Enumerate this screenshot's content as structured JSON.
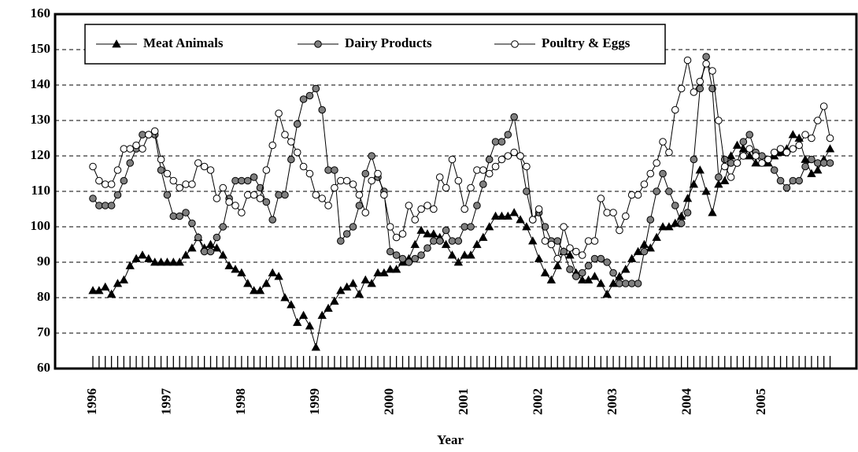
{
  "chart_data": {
    "type": "line",
    "x_label": "Year",
    "categories": [
      "1996",
      null,
      null,
      null,
      null,
      null,
      null,
      null,
      null,
      null,
      null,
      null,
      "1997",
      null,
      null,
      null,
      null,
      null,
      null,
      null,
      null,
      null,
      null,
      null,
      "1998",
      null,
      null,
      null,
      null,
      null,
      null,
      null,
      null,
      null,
      null,
      null,
      "1999",
      null,
      null,
      null,
      null,
      null,
      null,
      null,
      null,
      null,
      null,
      null,
      "2000",
      null,
      null,
      null,
      null,
      null,
      null,
      null,
      null,
      null,
      null,
      null,
      "2001",
      null,
      null,
      null,
      null,
      null,
      null,
      null,
      null,
      null,
      null,
      null,
      "2002",
      null,
      null,
      null,
      null,
      null,
      null,
      null,
      null,
      null,
      null,
      null,
      "2003",
      null,
      null,
      null,
      null,
      null,
      null,
      null,
      null,
      null,
      null,
      null,
      "2004",
      null,
      null,
      null,
      null,
      null,
      null,
      null,
      null,
      null,
      null,
      null,
      "2005",
      null,
      null,
      null,
      null,
      null,
      null,
      null,
      null,
      null,
      null,
      null
    ],
    "series": [
      {
        "name": "Meat Animals",
        "color": "#000000",
        "marker": "triangle",
        "values": [
          82,
          82,
          83,
          81,
          84,
          85,
          89,
          91,
          92,
          91,
          90,
          90,
          90,
          90,
          90,
          92,
          94,
          97,
          94,
          95,
          94,
          92,
          89,
          88,
          87,
          84,
          82,
          82,
          84,
          87,
          86,
          80,
          78,
          73,
          75,
          72,
          66,
          75,
          77,
          79,
          82,
          83,
          84,
          81,
          85,
          84,
          87,
          87,
          88,
          88,
          90,
          91,
          95,
          99,
          98,
          98,
          97,
          95,
          92,
          90,
          92,
          92,
          95,
          97,
          100,
          103,
          103,
          103,
          104,
          102,
          100,
          96,
          91,
          87,
          85,
          89,
          93,
          92,
          87,
          85,
          85,
          86,
          84,
          81,
          84,
          86,
          88,
          91,
          93,
          95,
          94,
          97,
          100,
          100,
          101,
          103,
          108,
          112,
          116,
          110,
          104,
          112,
          113,
          120,
          123,
          122,
          120,
          118,
          118,
          118,
          120,
          121,
          122,
          126,
          125,
          119,
          115,
          116,
          119,
          122
        ]
      },
      {
        "name": "Dairy Products",
        "color": "#7f7f7f",
        "marker": "circle",
        "values": [
          108,
          106,
          106,
          106,
          109,
          113,
          118,
          122,
          126,
          126,
          126,
          116,
          109,
          103,
          103,
          104,
          101,
          97,
          93,
          93,
          97,
          100,
          108,
          113,
          113,
          113,
          114,
          111,
          107,
          102,
          109,
          109,
          119,
          129,
          136,
          137,
          139,
          133,
          116,
          116,
          96,
          98,
          100,
          106,
          115,
          120,
          114,
          110,
          93,
          92,
          91,
          90,
          91,
          92,
          94,
          96,
          96,
          99,
          96,
          96,
          100,
          100,
          106,
          112,
          119,
          124,
          124,
          126,
          131,
          120,
          110,
          102,
          104,
          100,
          96,
          96,
          93,
          88,
          86,
          87,
          89,
          91,
          91,
          90,
          87,
          84,
          84,
          84,
          84,
          93,
          102,
          110,
          115,
          110,
          106,
          101,
          104,
          119,
          139,
          148,
          139,
          114,
          119,
          118,
          118,
          124,
          126,
          121,
          120,
          119,
          116,
          113,
          111,
          113,
          113,
          117,
          119,
          118,
          118,
          118
        ]
      },
      {
        "name": "Poultry & Eggs",
        "color": "#ffffff",
        "marker": "circle",
        "values": [
          117,
          113,
          112,
          112,
          116,
          122,
          122,
          123,
          122,
          126,
          127,
          119,
          115,
          113,
          111,
          112,
          112,
          118,
          117,
          116,
          108,
          111,
          107,
          106,
          104,
          109,
          109,
          108,
          116,
          123,
          132,
          126,
          124,
          121,
          117,
          115,
          109,
          108,
          106,
          111,
          113,
          113,
          112,
          109,
          104,
          113,
          115,
          109,
          100,
          97,
          98,
          106,
          102,
          105,
          106,
          105,
          114,
          111,
          119,
          113,
          105,
          111,
          116,
          116,
          115,
          117,
          119,
          120,
          121,
          120,
          117,
          102,
          105,
          96,
          95,
          91,
          100,
          94,
          93,
          92,
          96,
          96,
          108,
          104,
          104,
          99,
          103,
          109,
          109,
          112,
          115,
          118,
          124,
          121,
          133,
          139,
          147,
          138,
          141,
          146,
          144,
          130,
          117,
          114,
          118,
          120,
          122,
          120,
          118,
          119,
          121,
          122,
          121,
          122,
          123,
          126,
          125,
          130,
          134,
          125
        ]
      }
    ],
    "ylim": [
      60,
      160
    ],
    "yticks": [
      60,
      70,
      80,
      90,
      100,
      110,
      120,
      130,
      140,
      150,
      160
    ],
    "grid": true,
    "legend": "top-left"
  }
}
